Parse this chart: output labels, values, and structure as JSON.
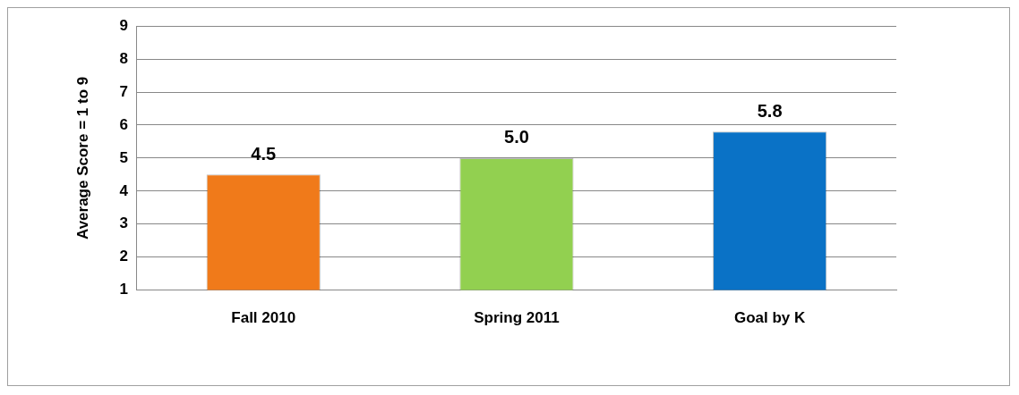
{
  "chart_data": {
    "type": "bar",
    "ylabel": "Average Score = 1 to 9",
    "categories": [
      "Fall 2010",
      "Spring 2011",
      "Goal by K"
    ],
    "values": [
      4.5,
      5.0,
      5.8
    ],
    "colors": [
      "#f07a1a",
      "#92d050",
      "#0a72c6"
    ],
    "value_labels": [
      "4.5",
      "5.0",
      "5.8"
    ],
    "ylim": [
      1,
      9
    ],
    "yticks": [
      1,
      2,
      3,
      4,
      5,
      6,
      7,
      8,
      9
    ],
    "grid": "y",
    "legend": false
  }
}
